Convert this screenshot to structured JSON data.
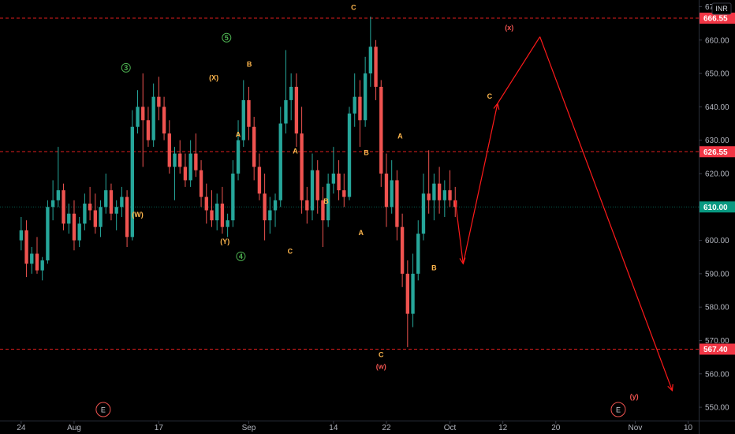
{
  "chart_data": {
    "type": "candlestick",
    "currency": "INR",
    "colors": {
      "up": "#26a69a",
      "down": "#ef5350",
      "level_line": "#e01e1e",
      "projection": "#ff1a1a",
      "wave_orange": "#ffb74d",
      "wave_green": "#4caf50",
      "wave_red": "#ef5350",
      "price_badge_red": "#f23645",
      "price_badge_green": "#089981"
    },
    "y_axis": {
      "min": 546,
      "max": 672,
      "ticks": [
        550,
        560,
        570,
        580,
        590,
        600,
        610,
        620,
        630,
        640,
        650,
        660,
        670
      ],
      "tick_labels": [
        "550.00",
        "560.00",
        "570.00",
        "580.00",
        "590.00",
        "600.00",
        "610.00",
        "620.00",
        "630.00",
        "640.00",
        "650.00",
        "660.00",
        "670.00"
      ]
    },
    "x_axis": {
      "min": -4,
      "max": 128,
      "ticks": [
        {
          "x": 0,
          "label": "24"
        },
        {
          "x": 10,
          "label": "Aug"
        },
        {
          "x": 26,
          "label": "17"
        },
        {
          "x": 43,
          "label": "Sep"
        },
        {
          "x": 59,
          "label": "14"
        },
        {
          "x": 69,
          "label": "22"
        },
        {
          "x": 81,
          "label": "Oct"
        },
        {
          "x": 91,
          "label": "12"
        },
        {
          "x": 101,
          "label": "20"
        },
        {
          "x": 116,
          "label": "Nov"
        },
        {
          "x": 126,
          "label": "10"
        }
      ]
    },
    "levels": [
      {
        "value": 666.55,
        "label": "666.55",
        "kind": "red"
      },
      {
        "value": 626.55,
        "label": "626.55",
        "kind": "red"
      },
      {
        "value": 567.4,
        "label": "567.40",
        "kind": "red"
      }
    ],
    "current_price": {
      "value": 610.0,
      "label": "610.00"
    },
    "candles": [
      [
        0,
        600,
        607,
        597,
        603
      ],
      [
        1,
        603,
        606,
        589,
        593
      ],
      [
        2,
        593,
        598,
        590,
        596
      ],
      [
        3,
        596,
        601,
        590,
        591
      ],
      [
        4,
        591,
        595,
        588,
        594
      ],
      [
        5,
        594,
        612,
        593,
        610
      ],
      [
        6,
        610,
        618,
        606,
        612
      ],
      [
        7,
        612,
        628,
        610,
        615
      ],
      [
        8,
        615,
        617,
        603,
        605
      ],
      [
        9,
        605,
        611,
        602,
        608
      ],
      [
        10,
        608,
        612,
        597,
        600
      ],
      [
        11,
        600,
        607,
        598,
        605
      ],
      [
        12,
        605,
        614,
        603,
        611
      ],
      [
        13,
        611,
        616,
        606,
        609
      ],
      [
        14,
        609,
        614,
        602,
        604
      ],
      [
        15,
        604,
        612,
        601,
        610
      ],
      [
        16,
        610,
        620,
        608,
        615
      ],
      [
        17,
        615,
        617,
        606,
        608
      ],
      [
        18,
        608,
        612,
        603,
        610
      ],
      [
        19,
        610,
        616,
        607,
        613
      ],
      [
        20,
        613,
        615,
        598,
        601
      ],
      [
        21,
        601,
        639,
        600,
        634
      ],
      [
        22,
        634,
        645,
        632,
        640
      ],
      [
        23,
        640,
        650,
        622,
        636
      ],
      [
        24,
        636,
        640,
        628,
        630
      ],
      [
        25,
        630,
        647,
        628,
        643
      ],
      [
        26,
        643,
        649,
        636,
        640
      ],
      [
        27,
        640,
        643,
        630,
        632
      ],
      [
        28,
        632,
        636,
        620,
        622
      ],
      [
        29,
        622,
        628,
        612,
        626
      ],
      [
        30,
        626,
        630,
        620,
        622
      ],
      [
        31,
        622,
        626,
        616,
        618
      ],
      [
        32,
        618,
        630,
        616,
        626
      ],
      [
        33,
        626,
        632,
        619,
        621
      ],
      [
        34,
        621,
        624,
        610,
        613
      ],
      [
        35,
        613,
        617,
        605,
        609
      ],
      [
        36,
        609,
        615,
        604,
        606
      ],
      [
        37,
        606,
        614,
        603,
        611
      ],
      [
        38,
        611,
        616,
        602,
        604
      ],
      [
        39,
        604,
        608,
        601,
        606
      ],
      [
        40,
        606,
        624,
        604,
        620
      ],
      [
        41,
        620,
        636,
        618,
        630
      ],
      [
        42,
        630,
        648,
        628,
        642
      ],
      [
        43,
        642,
        646,
        630,
        634
      ],
      [
        44,
        634,
        637,
        618,
        622
      ],
      [
        45,
        622,
        626,
        612,
        614
      ],
      [
        46,
        614,
        620,
        600,
        606
      ],
      [
        47,
        606,
        613,
        602,
        609
      ],
      [
        48,
        609,
        614,
        604,
        612
      ],
      [
        49,
        612,
        640,
        610,
        635
      ],
      [
        50,
        635,
        657,
        632,
        642
      ],
      [
        51,
        642,
        650,
        636,
        646
      ],
      [
        52,
        646,
        650,
        628,
        632
      ],
      [
        53,
        632,
        640,
        608,
        612
      ],
      [
        54,
        612,
        616,
        605,
        609
      ],
      [
        55,
        609,
        626,
        606,
        621
      ],
      [
        56,
        621,
        624,
        608,
        612
      ],
      [
        57,
        612,
        616,
        598,
        606
      ],
      [
        58,
        606,
        620,
        604,
        617
      ],
      [
        59,
        617,
        628,
        614,
        620
      ],
      [
        60,
        620,
        624,
        612,
        615
      ],
      [
        61,
        615,
        620,
        610,
        613
      ],
      [
        62,
        613,
        640,
        612,
        638
      ],
      [
        63,
        638,
        650,
        634,
        643
      ],
      [
        64,
        643,
        648,
        628,
        636
      ],
      [
        65,
        636,
        655,
        634,
        650
      ],
      [
        66,
        650,
        667,
        646,
        658
      ],
      [
        67,
        658,
        660,
        642,
        646
      ],
      [
        68,
        646,
        648,
        616,
        620
      ],
      [
        69,
        620,
        626,
        604,
        610
      ],
      [
        70,
        610,
        624,
        608,
        618
      ],
      [
        71,
        618,
        621,
        600,
        604
      ],
      [
        72,
        604,
        608,
        586,
        590
      ],
      [
        73,
        590,
        594,
        568,
        578
      ],
      [
        74,
        578,
        596,
        574,
        590
      ],
      [
        75,
        590,
        606,
        588,
        602
      ],
      [
        76,
        602,
        620,
        600,
        614
      ],
      [
        77,
        614,
        627,
        608,
        612
      ],
      [
        78,
        612,
        620,
        606,
        617
      ],
      [
        79,
        617,
        622,
        608,
        612
      ],
      [
        80,
        612,
        618,
        607,
        615
      ],
      [
        81,
        615,
        621,
        610,
        612
      ],
      [
        82,
        612,
        616,
        607,
        610
      ]
    ],
    "projection": [
      [
        82,
        612
      ],
      [
        83.5,
        593
      ],
      [
        90,
        641
      ],
      [
        98,
        661
      ],
      [
        123,
        555
      ]
    ],
    "wave_labels": [
      {
        "x": 19.8,
        "y": 651,
        "text": "3",
        "color": "green",
        "circled": true
      },
      {
        "x": 38.8,
        "y": 660,
        "text": "5",
        "color": "green",
        "circled": true
      },
      {
        "x": 41.5,
        "y": 594.5,
        "text": "4",
        "color": "green",
        "circled": true
      },
      {
        "x": 36.4,
        "y": 648,
        "text": "(X)",
        "color": "orange",
        "circled": false
      },
      {
        "x": 22.0,
        "y": 607,
        "text": "(W)",
        "color": "orange",
        "circled": false
      },
      {
        "x": 38.5,
        "y": 599,
        "text": "(Y)",
        "color": "orange",
        "circled": false
      },
      {
        "x": 43.1,
        "y": 652,
        "text": "B",
        "color": "orange",
        "circled": false
      },
      {
        "x": 41.0,
        "y": 631,
        "text": "A",
        "color": "orange",
        "circled": false
      },
      {
        "x": 51.8,
        "y": 626,
        "text": "A",
        "color": "orange",
        "circled": false
      },
      {
        "x": 50.8,
        "y": 596,
        "text": "C",
        "color": "orange",
        "circled": false
      },
      {
        "x": 57.6,
        "y": 611,
        "text": "B",
        "color": "orange",
        "circled": false
      },
      {
        "x": 62.8,
        "y": 669,
        "text": "C",
        "color": "orange",
        "circled": false
      },
      {
        "x": 65.2,
        "y": 625.5,
        "text": "B",
        "color": "orange",
        "circled": false
      },
      {
        "x": 64.2,
        "y": 601.5,
        "text": "A",
        "color": "orange",
        "circled": false
      },
      {
        "x": 71.6,
        "y": 630.5,
        "text": "A",
        "color": "orange",
        "circled": false
      },
      {
        "x": 68.0,
        "y": 565,
        "text": "C",
        "color": "orange",
        "circled": false
      },
      {
        "x": 68.0,
        "y": 561.5,
        "text": "(w)",
        "color": "red",
        "circled": false
      },
      {
        "x": 78.0,
        "y": 591,
        "text": "B",
        "color": "orange",
        "circled": false
      },
      {
        "x": 88.5,
        "y": 642.5,
        "text": "C",
        "color": "orange",
        "circled": false
      },
      {
        "x": 92.2,
        "y": 663,
        "text": "(x)",
        "color": "red",
        "circled": false
      },
      {
        "x": 115.8,
        "y": 552.5,
        "text": "(y)",
        "color": "red",
        "circled": false
      }
    ],
    "event_markers": [
      {
        "x": 15.5,
        "text": "E"
      },
      {
        "x": 112.8,
        "text": "E"
      }
    ]
  }
}
